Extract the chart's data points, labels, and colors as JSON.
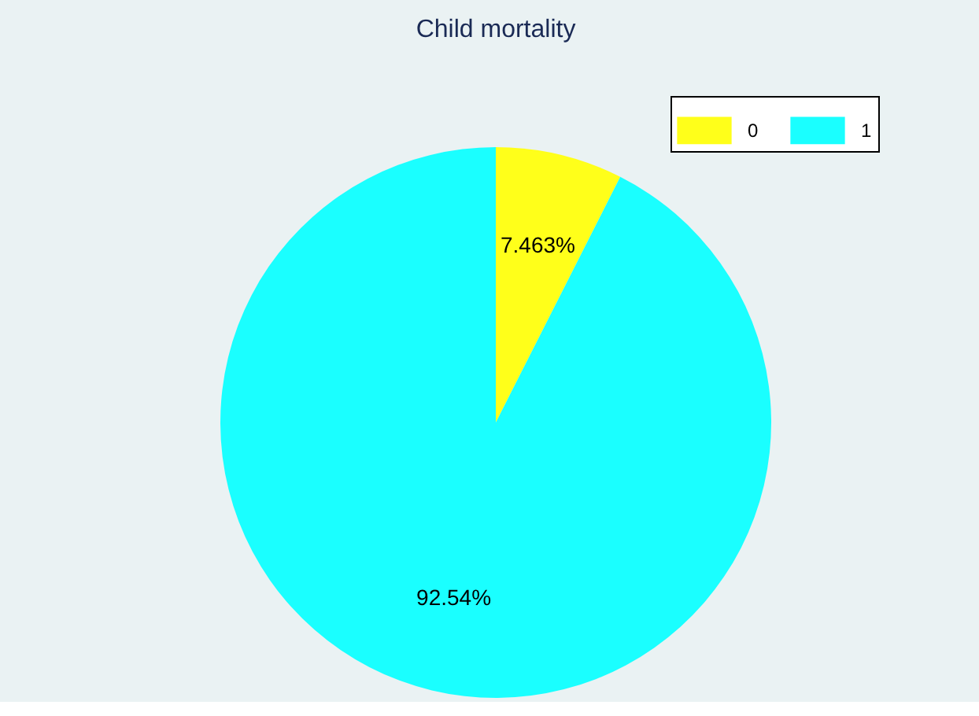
{
  "chart_data": {
    "type": "pie",
    "title": "Child mortality",
    "categories": [
      "0",
      "1"
    ],
    "values": [
      7.463,
      92.54
    ],
    "colors": [
      "#ffff1a",
      "#1affff"
    ],
    "value_labels": [
      "7.463%",
      "92.54%"
    ],
    "legend": "top right"
  }
}
